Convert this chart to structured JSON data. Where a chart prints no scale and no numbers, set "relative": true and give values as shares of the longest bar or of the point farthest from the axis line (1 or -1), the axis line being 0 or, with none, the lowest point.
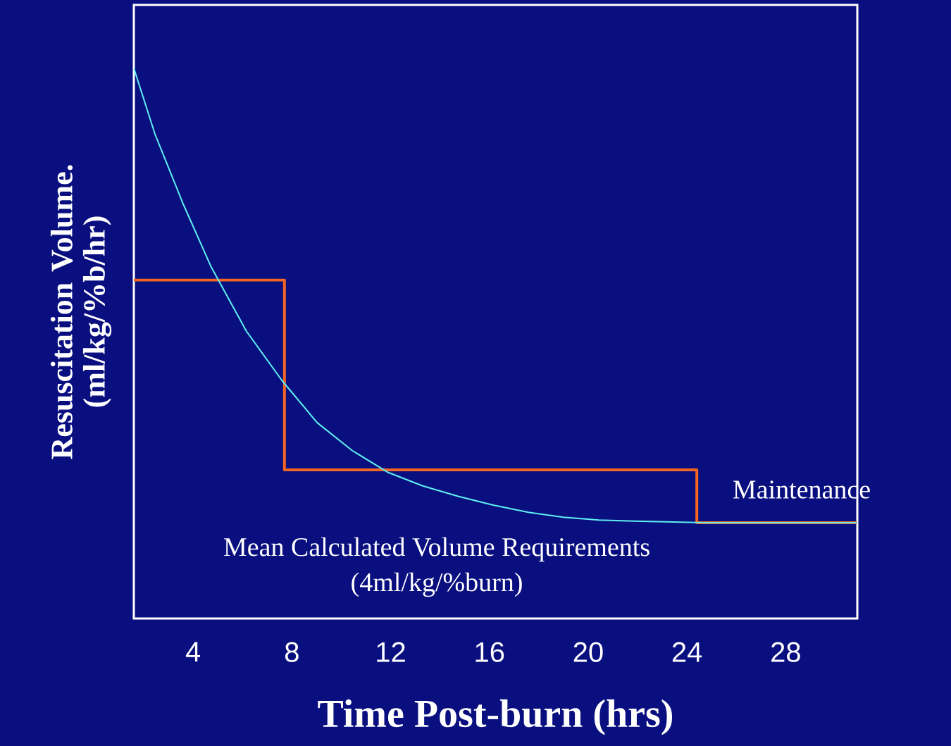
{
  "chart_data": {
    "type": "line",
    "relative": true,
    "xlabel": "Time Post-burn (hrs)",
    "ylabel": "Resuscitation Volume. (ml/kg/%b/hr)",
    "xlim": [
      1.6,
      30.9
    ],
    "xticks": [
      4,
      8,
      12,
      16,
      20,
      24,
      28
    ],
    "annotations": [
      "Maintenance",
      "Mean Calculated Volume Requirements",
      "(4ml/kg/%burn)"
    ],
    "series": [
      {
        "type": "step",
        "color": "#f26522",
        "x": [
          1.6,
          7.7,
          24.4,
          30.9
        ],
        "values": [
          0.615,
          0.27,
          0.174,
          0.174
        ]
      },
      {
        "color": "#5ff0f0",
        "x": [
          1.6,
          2.45,
          3.6,
          4.74,
          6.16,
          7.59,
          9.02,
          10.45,
          11.87,
          13.3,
          14.73,
          16.15,
          17.58,
          19.0,
          20.43,
          21.86,
          24.71,
          30.9
        ],
        "values": [
          1.0,
          0.881,
          0.753,
          0.638,
          0.522,
          0.433,
          0.356,
          0.305,
          0.266,
          0.241,
          0.222,
          0.206,
          0.193,
          0.184,
          0.179,
          0.177,
          0.174,
          0.174
        ]
      }
    ]
  }
}
